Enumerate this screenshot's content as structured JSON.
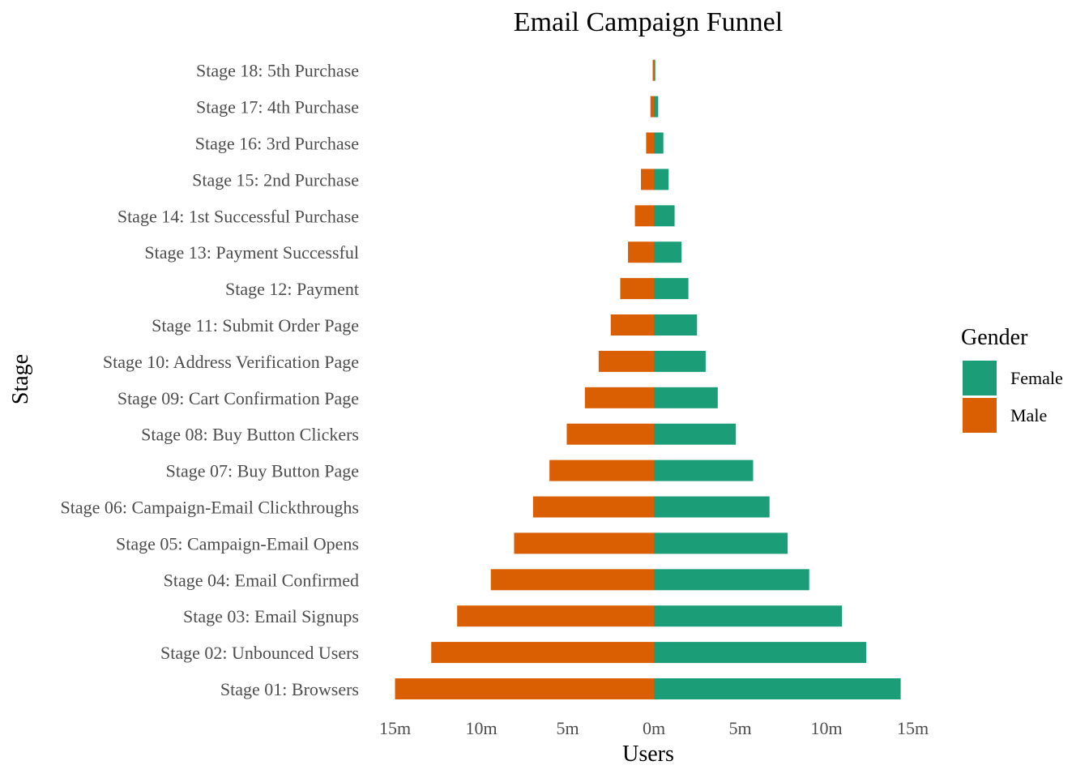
{
  "chart_data": {
    "type": "bar",
    "orientation": "horizontal-diverging",
    "title": "Email Campaign Funnel",
    "xlabel": "Users",
    "ylabel": "Stage",
    "xlim": [
      -15,
      15
    ],
    "xticks": [
      -15,
      -10,
      -5,
      0,
      5,
      10,
      15
    ],
    "xtick_labels": [
      "15m",
      "10m",
      "5m",
      "0m",
      "5m",
      "10m",
      "15m"
    ],
    "grid": false,
    "legend": {
      "title": "Gender",
      "position": "right"
    },
    "categories": [
      "Stage 01: Browsers",
      "Stage 02: Unbounced Users",
      "Stage 03: Email Signups",
      "Stage 04: Email Confirmed",
      "Stage 05: Campaign-Email Opens",
      "Stage 06: Campaign-Email Clickthroughs",
      "Stage 07: Buy Button Page",
      "Stage 08: Buy Button Clickers",
      "Stage 09: Cart Confirmation Page",
      "Stage 10: Address Verification Page",
      "Stage 11: Submit Order Page",
      "Stage 12: Payment",
      "Stage 13: Payment Successful",
      "Stage 14: 1st Successful Purchase",
      "Stage 15: 2nd Purchase",
      "Stage 16: 3rd Purchase",
      "Stage 17: 4th Purchase",
      "Stage 18: 5th Purchase"
    ],
    "series": [
      {
        "name": "Female",
        "color": "#1b9e77",
        "values": [
          14.3,
          12.3,
          10.9,
          9.0,
          7.75,
          6.7,
          5.75,
          4.75,
          3.7,
          3.0,
          2.5,
          2.0,
          1.6,
          1.2,
          0.85,
          0.55,
          0.25,
          0.08
        ]
      },
      {
        "name": "Male",
        "color": "#d95f02",
        "values": [
          15.0,
          12.9,
          11.4,
          9.45,
          8.1,
          7.0,
          6.05,
          5.05,
          4.0,
          3.2,
          2.5,
          1.95,
          1.5,
          1.1,
          0.75,
          0.45,
          0.2,
          0.07
        ]
      }
    ]
  }
}
